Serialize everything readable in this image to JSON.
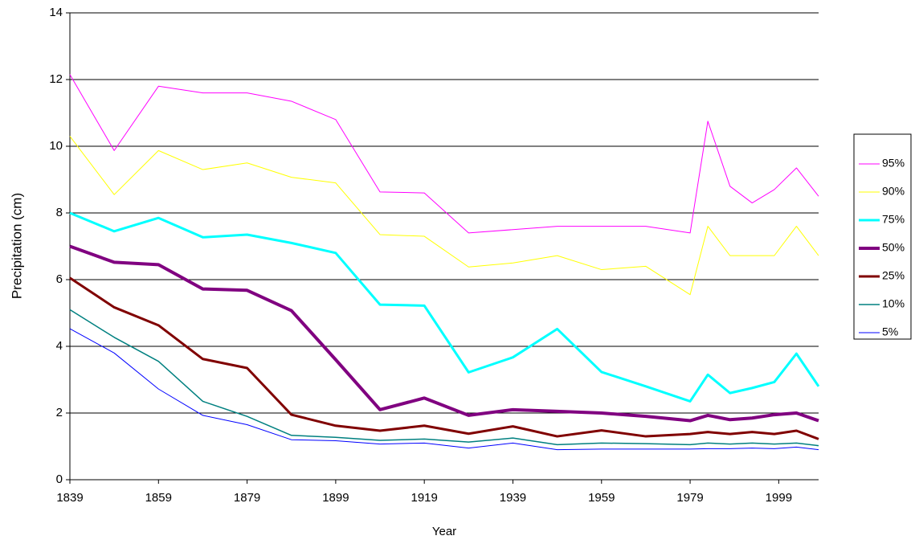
{
  "chart_data": {
    "type": "line",
    "x_label": "Year",
    "y_label": "Precipitation (cm)",
    "x": [
      1839,
      1849,
      1859,
      1869,
      1879,
      1889,
      1899,
      1909,
      1919,
      1929,
      1939,
      1949,
      1959,
      1969,
      1979,
      1983,
      1988,
      1993,
      1998,
      2003,
      2008
    ],
    "series": [
      {
        "name": "95%",
        "color": "#ff00ff",
        "line_width": 1,
        "values": [
          12.15,
          9.87,
          11.8,
          11.6,
          11.6,
          11.35,
          10.8,
          8.63,
          8.6,
          7.4,
          7.5,
          7.6,
          7.6,
          7.6,
          7.4,
          10.75,
          8.8,
          8.3,
          8.7,
          9.35,
          8.5
        ]
      },
      {
        "name": "90%",
        "color": "#ffff00",
        "line_width": 1,
        "values": [
          10.3,
          8.55,
          9.87,
          9.3,
          9.5,
          9.07,
          8.9,
          7.35,
          7.3,
          6.38,
          6.5,
          6.72,
          6.3,
          6.4,
          5.55,
          7.6,
          6.72,
          6.72,
          6.72,
          7.6,
          6.72
        ]
      },
      {
        "name": "75%",
        "color": "#00ffff",
        "line_width": 3,
        "values": [
          8.0,
          7.45,
          7.85,
          7.27,
          7.35,
          7.1,
          6.8,
          5.25,
          5.22,
          3.22,
          3.67,
          4.52,
          3.23,
          2.8,
          2.35,
          3.15,
          2.6,
          2.75,
          2.93,
          3.78,
          2.8
        ]
      },
      {
        "name": "50%",
        "color": "#800080",
        "line_width": 4,
        "values": [
          7.0,
          6.52,
          6.45,
          5.72,
          5.68,
          5.07,
          3.6,
          2.1,
          2.45,
          1.93,
          2.1,
          2.05,
          2.0,
          1.9,
          1.77,
          1.93,
          1.8,
          1.85,
          1.95,
          2.0,
          1.77
        ]
      },
      {
        "name": "25%",
        "color": "#800000",
        "line_width": 3,
        "values": [
          6.05,
          5.17,
          4.63,
          3.62,
          3.35,
          1.95,
          1.62,
          1.47,
          1.62,
          1.38,
          1.6,
          1.3,
          1.48,
          1.3,
          1.37,
          1.43,
          1.37,
          1.43,
          1.37,
          1.47,
          1.22
        ]
      },
      {
        "name": "10%",
        "color": "#008080",
        "line_width": 1.5,
        "values": [
          5.1,
          4.27,
          3.55,
          2.35,
          1.9,
          1.33,
          1.27,
          1.18,
          1.22,
          1.13,
          1.25,
          1.05,
          1.1,
          1.08,
          1.05,
          1.1,
          1.07,
          1.1,
          1.07,
          1.1,
          1.02
        ]
      },
      {
        "name": "5%",
        "color": "#0000ff",
        "line_width": 1,
        "values": [
          4.53,
          3.8,
          2.72,
          1.93,
          1.65,
          1.2,
          1.17,
          1.07,
          1.1,
          0.95,
          1.1,
          0.9,
          0.92,
          0.92,
          0.92,
          0.93,
          0.93,
          0.95,
          0.93,
          0.98,
          0.9
        ]
      }
    ],
    "xlim": [
      1839,
      2008
    ],
    "xticks": [
      1839,
      1859,
      1879,
      1899,
      1919,
      1939,
      1959,
      1979,
      1999
    ],
    "ylim": [
      0,
      14
    ],
    "yticks": [
      0,
      2,
      4,
      6,
      8,
      10,
      12,
      14
    ],
    "grid": true,
    "legend": "right"
  }
}
